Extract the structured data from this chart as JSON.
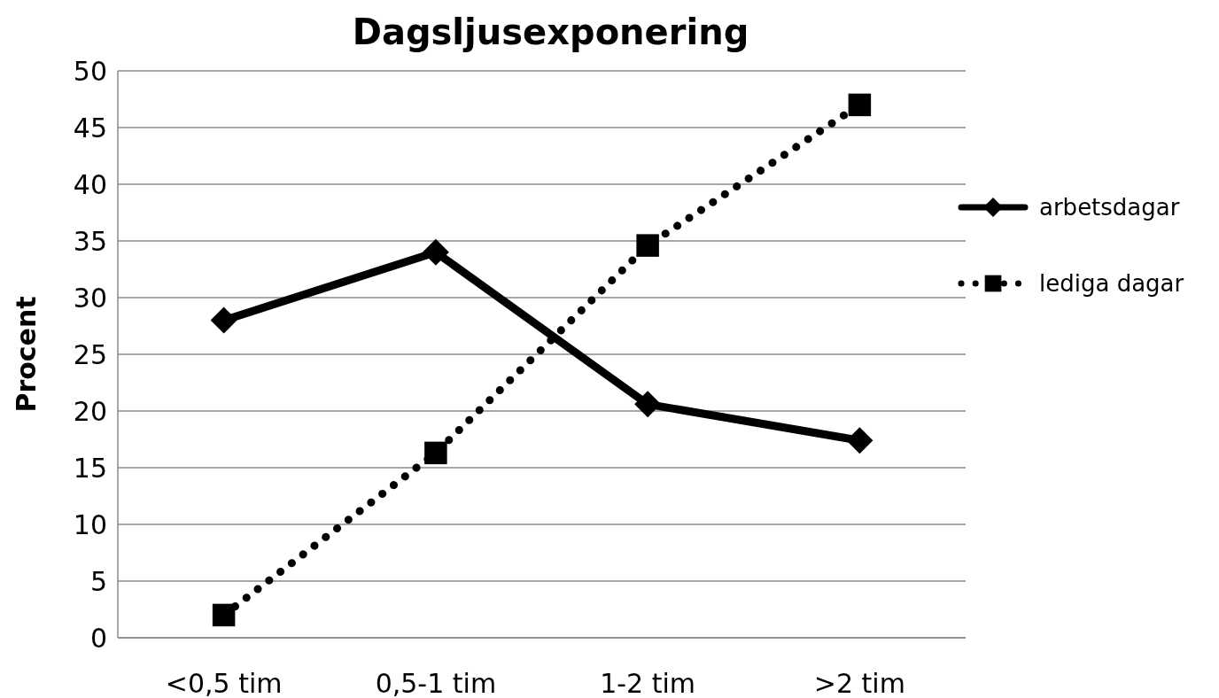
{
  "chart_data": {
    "type": "line",
    "title": "Dagsljusexponering",
    "ylabel": "Procent",
    "categories": [
      "<0,5 tim",
      "0,5-1 tim",
      "1-2 tim",
      ">2 tim"
    ],
    "series": [
      {
        "name": "arbetsdagar",
        "color": "#000000",
        "values": [
          28,
          34,
          20.6,
          17.4
        ],
        "marker": "diamond",
        "line_style": "solid"
      },
      {
        "name": "lediga dagar",
        "color": "#000000",
        "values": [
          2,
          16.3,
          34.6,
          47
        ],
        "marker": "square",
        "line_style": "dotted"
      }
    ],
    "ylim": [
      0,
      50
    ],
    "yticks": [
      0,
      5,
      10,
      15,
      20,
      25,
      30,
      35,
      40,
      45,
      50
    ],
    "grid": "y",
    "legend": "right"
  }
}
